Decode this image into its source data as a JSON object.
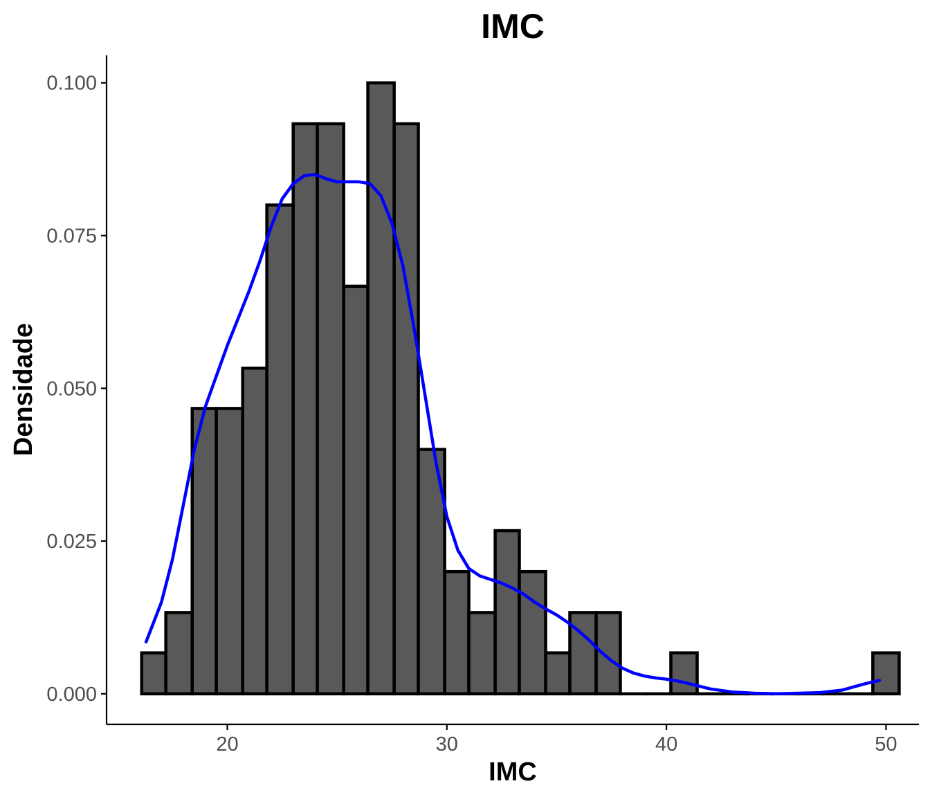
{
  "chart_data": {
    "type": "bar",
    "subtype": "histogram-with-density",
    "title": "IMC",
    "xlabel": "IMC",
    "ylabel": "Densidade",
    "xlim": [
      14.5,
      51.5
    ],
    "ylim": [
      -0.005,
      0.1045
    ],
    "x_ticks": [
      20,
      30,
      40,
      50
    ],
    "x_tick_labels": [
      "20",
      "30",
      "40",
      "50"
    ],
    "y_ticks": [
      0,
      0.025,
      0.05,
      0.075,
      0.1
    ],
    "y_tick_labels": [
      "0.000",
      "0.025",
      "0.050",
      "0.075",
      "0.100"
    ],
    "grid": false,
    "bar_fill": "#595959",
    "bar_outline": "#000000",
    "density_color": "#0000ff",
    "bins": [
      {
        "x0": 16.1,
        "x1": 17.2,
        "density": 0.0067
      },
      {
        "x0": 17.2,
        "x1": 18.4,
        "density": 0.0133
      },
      {
        "x0": 18.4,
        "x1": 19.5,
        "density": 0.0467
      },
      {
        "x0": 19.5,
        "x1": 20.7,
        "density": 0.0467
      },
      {
        "x0": 20.7,
        "x1": 21.8,
        "density": 0.0533
      },
      {
        "x0": 21.8,
        "x1": 23.0,
        "density": 0.08
      },
      {
        "x0": 23.0,
        "x1": 24.1,
        "density": 0.0933
      },
      {
        "x0": 24.1,
        "x1": 25.3,
        "density": 0.0933
      },
      {
        "x0": 25.3,
        "x1": 26.4,
        "density": 0.0667
      },
      {
        "x0": 26.4,
        "x1": 27.6,
        "density": 0.1
      },
      {
        "x0": 27.6,
        "x1": 28.7,
        "density": 0.0933
      },
      {
        "x0": 28.7,
        "x1": 29.9,
        "density": 0.04
      },
      {
        "x0": 29.9,
        "x1": 31.0,
        "density": 0.02
      },
      {
        "x0": 31.0,
        "x1": 32.2,
        "density": 0.0133
      },
      {
        "x0": 32.2,
        "x1": 33.3,
        "density": 0.0267
      },
      {
        "x0": 33.3,
        "x1": 34.5,
        "density": 0.02
      },
      {
        "x0": 34.5,
        "x1": 35.6,
        "density": 0.0067
      },
      {
        "x0": 35.6,
        "x1": 36.8,
        "density": 0.0133
      },
      {
        "x0": 36.8,
        "x1": 37.9,
        "density": 0.0133
      },
      {
        "x0": 37.9,
        "x1": 39.1,
        "density": 0.0
      },
      {
        "x0": 39.1,
        "x1": 40.2,
        "density": 0.0
      },
      {
        "x0": 40.2,
        "x1": 41.4,
        "density": 0.0067
      },
      {
        "x0": 41.4,
        "x1": 42.5,
        "density": 0.0
      },
      {
        "x0": 42.5,
        "x1": 43.7,
        "density": 0.0
      },
      {
        "x0": 43.7,
        "x1": 44.8,
        "density": 0.0
      },
      {
        "x0": 44.8,
        "x1": 46.0,
        "density": 0.0
      },
      {
        "x0": 46.0,
        "x1": 47.1,
        "density": 0.0
      },
      {
        "x0": 47.1,
        "x1": 48.3,
        "density": 0.0
      },
      {
        "x0": 48.3,
        "x1": 49.4,
        "density": 0.0
      },
      {
        "x0": 49.4,
        "x1": 50.6,
        "density": 0.0067
      }
    ],
    "density_curve": {
      "x": [
        16.3,
        17.0,
        17.5,
        18.0,
        18.5,
        19.0,
        19.5,
        20.0,
        20.5,
        21.0,
        21.5,
        22.0,
        22.5,
        23.0,
        23.5,
        24.0,
        24.5,
        25.0,
        25.5,
        26.0,
        26.5,
        27.0,
        27.5,
        28.0,
        28.5,
        29.0,
        29.5,
        30.0,
        30.5,
        31.0,
        31.5,
        32.0,
        32.5,
        33.0,
        33.5,
        34.0,
        34.5,
        35.0,
        35.5,
        36.0,
        36.5,
        37.0,
        37.5,
        38.0,
        38.5,
        39.0,
        39.5,
        40.0,
        40.5,
        41.0,
        42.0,
        43.0,
        44.0,
        45.0,
        46.0,
        47.0,
        48.0,
        49.0,
        49.7
      ],
      "y": [
        0.0085,
        0.015,
        0.022,
        0.031,
        0.04,
        0.047,
        0.052,
        0.057,
        0.0615,
        0.066,
        0.071,
        0.0765,
        0.081,
        0.0835,
        0.0848,
        0.085,
        0.0843,
        0.0838,
        0.0838,
        0.0838,
        0.0835,
        0.0815,
        0.077,
        0.07,
        0.06,
        0.049,
        0.038,
        0.029,
        0.0235,
        0.0205,
        0.0193,
        0.0187,
        0.0181,
        0.0173,
        0.0163,
        0.015,
        0.0139,
        0.0129,
        0.0117,
        0.0103,
        0.0087,
        0.0069,
        0.0054,
        0.0042,
        0.0034,
        0.0029,
        0.0026,
        0.0024,
        0.0021,
        0.0017,
        0.0008,
        0.0003,
        0.0001,
        0.0,
        0.0001,
        0.0002,
        0.0006,
        0.0016,
        0.0022
      ]
    }
  }
}
